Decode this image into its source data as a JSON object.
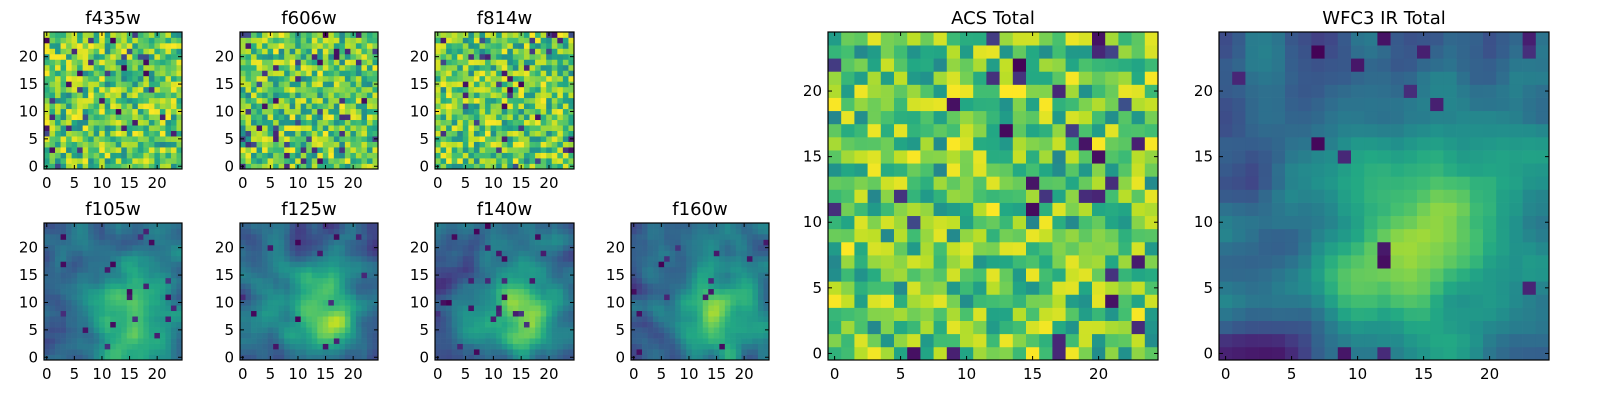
{
  "chart_data": [
    {
      "type": "heatmap",
      "title": "f435w",
      "rows": 25,
      "cols": 25,
      "xlim": [
        -0.5,
        24.5
      ],
      "ylim": [
        -0.5,
        24.5
      ],
      "xticks": [
        0,
        5,
        10,
        15,
        20
      ],
      "yticks": [
        0,
        5,
        10,
        15,
        20
      ],
      "colormap": "viridis",
      "pattern": "noise",
      "seed": 11
    },
    {
      "type": "heatmap",
      "title": "f606w",
      "rows": 25,
      "cols": 25,
      "xlim": [
        -0.5,
        24.5
      ],
      "ylim": [
        -0.5,
        24.5
      ],
      "xticks": [
        0,
        5,
        10,
        15,
        20
      ],
      "yticks": [
        0,
        5,
        10,
        15,
        20
      ],
      "colormap": "viridis",
      "pattern": "noise",
      "seed": 23
    },
    {
      "type": "heatmap",
      "title": "f814w",
      "rows": 25,
      "cols": 25,
      "xlim": [
        -0.5,
        24.5
      ],
      "ylim": [
        -0.5,
        24.5
      ],
      "xticks": [
        0,
        5,
        10,
        15,
        20
      ],
      "yticks": [
        0,
        5,
        10,
        15,
        20
      ],
      "colormap": "viridis",
      "pattern": "noise",
      "seed": 37
    },
    {
      "type": "heatmap",
      "title": "f105w",
      "rows": 25,
      "cols": 25,
      "xlim": [
        -0.5,
        24.5
      ],
      "ylim": [
        -0.5,
        24.5
      ],
      "xticks": [
        0,
        5,
        10,
        15,
        20
      ],
      "yticks": [
        0,
        5,
        10,
        15,
        20
      ],
      "colormap": "viridis",
      "pattern": "smooth",
      "seed": 41
    },
    {
      "type": "heatmap",
      "title": "f125w",
      "rows": 25,
      "cols": 25,
      "xlim": [
        -0.5,
        24.5
      ],
      "ylim": [
        -0.5,
        24.5
      ],
      "xticks": [
        0,
        5,
        10,
        15,
        20
      ],
      "yticks": [
        0,
        5,
        10,
        15,
        20
      ],
      "colormap": "viridis",
      "pattern": "smooth",
      "seed": 53
    },
    {
      "type": "heatmap",
      "title": "f140w",
      "rows": 25,
      "cols": 25,
      "xlim": [
        -0.5,
        24.5
      ],
      "ylim": [
        -0.5,
        24.5
      ],
      "xticks": [
        0,
        5,
        10,
        15,
        20
      ],
      "yticks": [
        0,
        5,
        10,
        15,
        20
      ],
      "colormap": "viridis",
      "pattern": "smooth",
      "seed": 67
    },
    {
      "type": "heatmap",
      "title": "f160w",
      "rows": 25,
      "cols": 25,
      "xlim": [
        -0.5,
        24.5
      ],
      "ylim": [
        -0.5,
        24.5
      ],
      "xticks": [
        0,
        5,
        10,
        15,
        20
      ],
      "yticks": [
        0,
        5,
        10,
        15,
        20
      ],
      "colormap": "viridis",
      "pattern": "smooth",
      "seed": 79
    },
    {
      "type": "heatmap",
      "title": "ACS Total",
      "rows": 25,
      "cols": 25,
      "xlim": [
        -0.5,
        24.5
      ],
      "ylim": [
        -0.5,
        24.5
      ],
      "xticks": [
        0,
        5,
        10,
        15,
        20
      ],
      "yticks": [
        0,
        5,
        10,
        15,
        20
      ],
      "colormap": "viridis",
      "pattern": "noise",
      "seed": 89
    },
    {
      "type": "heatmap",
      "title": "WFC3 IR Total",
      "rows": 25,
      "cols": 25,
      "xlim": [
        -0.5,
        24.5
      ],
      "ylim": [
        -0.5,
        24.5
      ],
      "xticks": [
        0,
        5,
        10,
        15,
        20
      ],
      "yticks": [
        0,
        5,
        10,
        15,
        20
      ],
      "colormap": "viridis",
      "pattern": "smooth",
      "seed": 97
    }
  ]
}
